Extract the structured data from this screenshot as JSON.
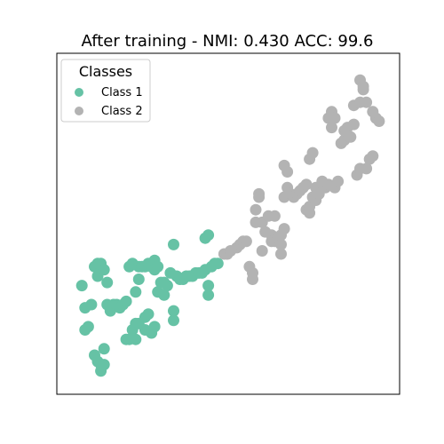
{
  "chart_data": {
    "type": "scatter",
    "title": "After training - NMI: 0.430 ACC: 99.6",
    "xlabel": "",
    "ylabel": "",
    "xlim": [
      0,
      1
    ],
    "ylim": [
      0,
      1
    ],
    "axis_ticks": false,
    "grid": false,
    "legend": {
      "title": "Classes",
      "placement": "top-left"
    },
    "series": [
      {
        "name": "Class 1",
        "color": "#66c2a5",
        "points": [
          [
            0.04,
            0.31
          ],
          [
            0.05,
            0.24
          ],
          [
            0.05,
            0.17
          ],
          [
            0.06,
            0.18
          ],
          [
            0.07,
            0.25
          ],
          [
            0.08,
            0.37
          ],
          [
            0.08,
            0.09
          ],
          [
            0.09,
            0.38
          ],
          [
            0.09,
            0.34
          ],
          [
            0.09,
            0.07
          ],
          [
            0.1,
            0.06
          ],
          [
            0.1,
            0.04
          ],
          [
            0.1,
            0.38
          ],
          [
            0.11,
            0.36
          ],
          [
            0.11,
            0.06
          ],
          [
            0.11,
            0.11
          ],
          [
            0.12,
            0.32
          ],
          [
            0.12,
            0.25
          ],
          [
            0.13,
            0.23
          ],
          [
            0.14,
            0.25
          ],
          [
            0.15,
            0.25
          ],
          [
            0.16,
            0.24
          ],
          [
            0.17,
            0.25
          ],
          [
            0.18,
            0.26
          ],
          [
            0.18,
            0.14
          ],
          [
            0.19,
            0.37
          ],
          [
            0.19,
            0.14
          ],
          [
            0.2,
            0.38
          ],
          [
            0.2,
            0.17
          ],
          [
            0.21,
            0.14
          ],
          [
            0.21,
            0.29
          ],
          [
            0.21,
            0.19
          ],
          [
            0.22,
            0.37
          ],
          [
            0.22,
            0.33
          ],
          [
            0.22,
            0.19
          ],
          [
            0.23,
            0.37
          ],
          [
            0.24,
            0.37
          ],
          [
            0.24,
            0.21
          ],
          [
            0.24,
            0.17
          ],
          [
            0.25,
            0.38
          ],
          [
            0.25,
            0.22
          ],
          [
            0.26,
            0.37
          ],
          [
            0.26,
            0.16
          ],
          [
            0.27,
            0.39
          ],
          [
            0.27,
            0.36
          ],
          [
            0.27,
            0.18
          ],
          [
            0.28,
            0.37
          ],
          [
            0.28,
            0.29
          ],
          [
            0.29,
            0.32
          ],
          [
            0.3,
            0.32
          ],
          [
            0.3,
            0.28
          ],
          [
            0.31,
            0.31
          ],
          [
            0.32,
            0.35
          ],
          [
            0.33,
            0.44
          ],
          [
            0.33,
            0.23
          ],
          [
            0.33,
            0.2
          ],
          [
            0.34,
            0.34
          ],
          [
            0.35,
            0.33
          ],
          [
            0.36,
            0.33
          ],
          [
            0.37,
            0.34
          ],
          [
            0.38,
            0.34
          ],
          [
            0.39,
            0.34
          ],
          [
            0.4,
            0.35
          ],
          [
            0.41,
            0.35
          ],
          [
            0.42,
            0.35
          ],
          [
            0.43,
            0.46
          ],
          [
            0.43,
            0.36
          ],
          [
            0.44,
            0.47
          ],
          [
            0.44,
            0.31
          ],
          [
            0.44,
            0.28
          ],
          [
            0.45,
            0.37
          ],
          [
            0.46,
            0.38
          ],
          [
            0.47,
            0.38
          ]
        ]
      },
      {
        "name": "Class 2",
        "color": "#b3b3b3",
        "points": [
          [
            0.49,
            0.41
          ],
          [
            0.5,
            0.41
          ],
          [
            0.51,
            0.42
          ],
          [
            0.53,
            0.43
          ],
          [
            0.54,
            0.44
          ],
          [
            0.55,
            0.45
          ],
          [
            0.56,
            0.45
          ],
          [
            0.57,
            0.37
          ],
          [
            0.58,
            0.33
          ],
          [
            0.58,
            0.35
          ],
          [
            0.59,
            0.51
          ],
          [
            0.59,
            0.55
          ],
          [
            0.6,
            0.6
          ],
          [
            0.6,
            0.59
          ],
          [
            0.61,
            0.51
          ],
          [
            0.61,
            0.42
          ],
          [
            0.62,
            0.48
          ],
          [
            0.63,
            0.53
          ],
          [
            0.64,
            0.47
          ],
          [
            0.64,
            0.45
          ],
          [
            0.65,
            0.45
          ],
          [
            0.65,
            0.53
          ],
          [
            0.66,
            0.46
          ],
          [
            0.67,
            0.44
          ],
          [
            0.67,
            0.41
          ],
          [
            0.67,
            0.47
          ],
          [
            0.68,
            0.49
          ],
          [
            0.68,
            0.59
          ],
          [
            0.68,
            0.69
          ],
          [
            0.69,
            0.67
          ],
          [
            0.69,
            0.62
          ],
          [
            0.7,
            0.6
          ],
          [
            0.71,
            0.59
          ],
          [
            0.72,
            0.6
          ],
          [
            0.73,
            0.61
          ],
          [
            0.74,
            0.62
          ],
          [
            0.75,
            0.63
          ],
          [
            0.75,
            0.55
          ],
          [
            0.76,
            0.54
          ],
          [
            0.76,
            0.56
          ],
          [
            0.76,
            0.71
          ],
          [
            0.77,
            0.73
          ],
          [
            0.77,
            0.59
          ],
          [
            0.78,
            0.58
          ],
          [
            0.78,
            0.62
          ],
          [
            0.79,
            0.6
          ],
          [
            0.8,
            0.64
          ],
          [
            0.81,
            0.62
          ],
          [
            0.82,
            0.63
          ],
          [
            0.82,
            0.84
          ],
          [
            0.83,
            0.86
          ],
          [
            0.83,
            0.81
          ],
          [
            0.84,
            0.62
          ],
          [
            0.84,
            0.84
          ],
          [
            0.85,
            0.64
          ],
          [
            0.86,
            0.76
          ],
          [
            0.87,
            0.77
          ],
          [
            0.87,
            0.8
          ],
          [
            0.88,
            0.81
          ],
          [
            0.89,
            0.78
          ],
          [
            0.9,
            0.82
          ],
          [
            0.9,
            0.88
          ],
          [
            0.91,
            0.66
          ],
          [
            0.92,
            0.68
          ],
          [
            0.92,
            0.89
          ],
          [
            0.92,
            0.96
          ],
          [
            0.93,
            0.93
          ],
          [
            0.93,
            0.94
          ],
          [
            0.94,
            0.89
          ],
          [
            0.94,
            0.68
          ],
          [
            0.95,
            0.71
          ],
          [
            0.96,
            0.72
          ],
          [
            0.96,
            0.86
          ],
          [
            0.97,
            0.84
          ],
          [
            0.98,
            0.83
          ]
        ]
      }
    ]
  }
}
